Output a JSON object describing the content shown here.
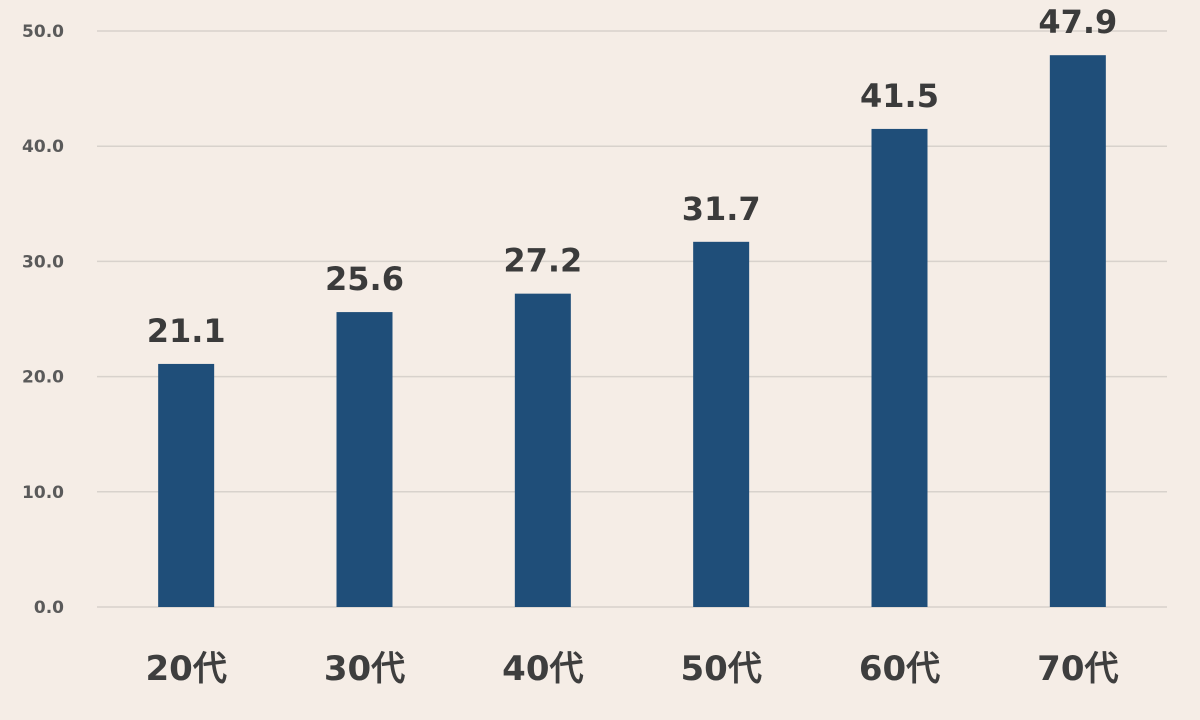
{
  "chart_data": {
    "type": "bar",
    "categories": [
      "20代",
      "30代",
      "40代",
      "50代",
      "60代",
      "70代"
    ],
    "values": [
      21.1,
      25.6,
      27.2,
      31.7,
      41.5,
      47.9
    ],
    "data_labels": [
      "21.1",
      "25.6",
      "27.2",
      "31.7",
      "41.5",
      "47.9"
    ],
    "y_ticks": [
      "0.0",
      "10.0",
      "20.0",
      "30.0",
      "40.0",
      "50.0"
    ],
    "ylim": [
      0,
      50
    ],
    "title": "",
    "xlabel": "",
    "ylabel": "",
    "grid": true,
    "legend": "none",
    "colors": {
      "bar": "#1f4e79",
      "grid": "#d8d2cc",
      "background": "#f5ede6"
    }
  }
}
